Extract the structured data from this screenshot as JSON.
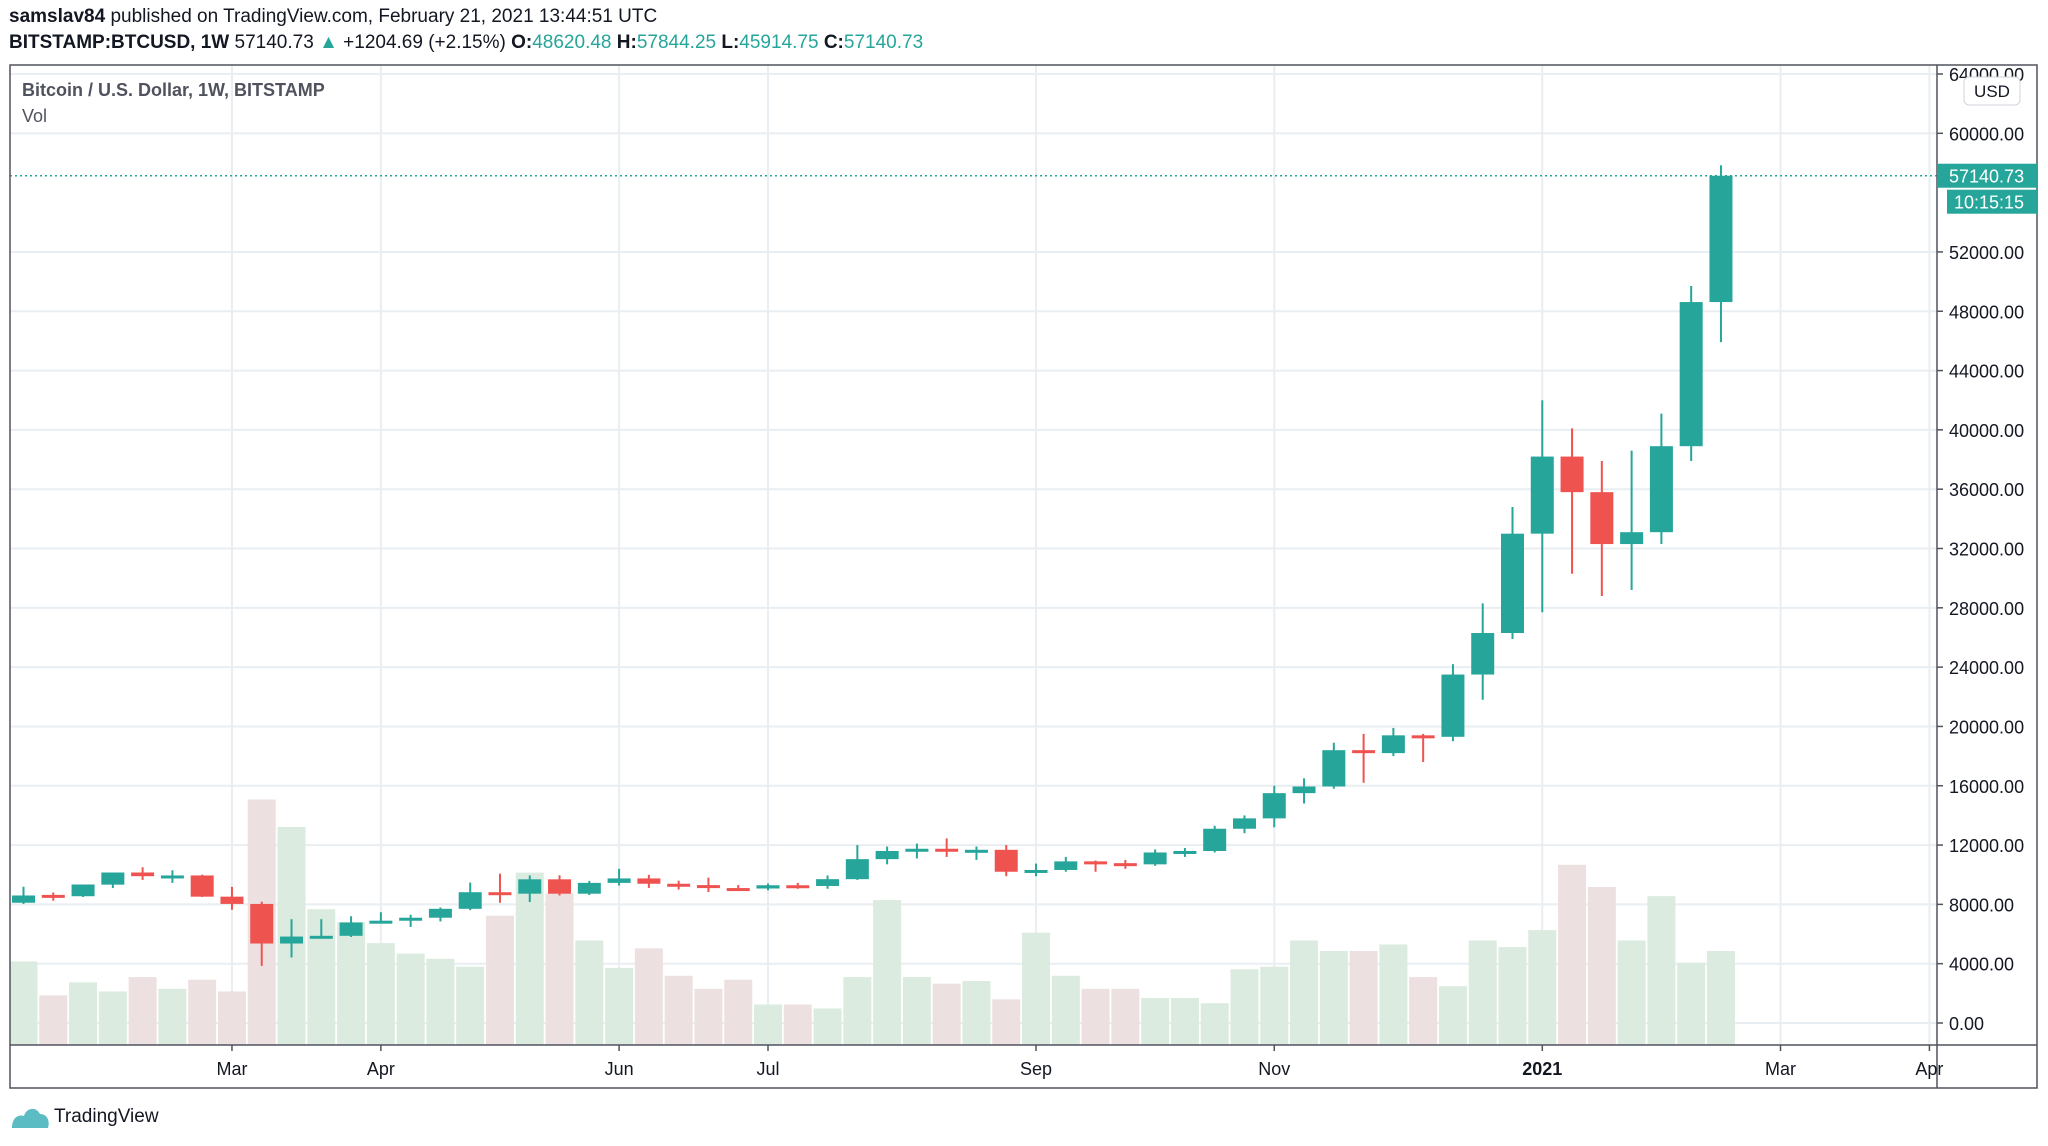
{
  "header": {
    "author": "samslav84",
    "published": "published on TradingView.com, February 21, 2021 13:44:51 UTC",
    "symbol": "BITSTAMP:BTCUSD, 1W",
    "last": "57140.73",
    "change": "+1204.69 (+2.15%)",
    "o_label": "O:",
    "o": "48620.48",
    "h_label": "H:",
    "h": "57844.25",
    "l_label": "L:",
    "l": "45914.75",
    "c_label": "C:",
    "c": "57140.73"
  },
  "legend": {
    "title": "Bitcoin / U.S. Dollar, 1W, BITSTAMP",
    "vol": "Vol"
  },
  "currency": "USD",
  "price_tag": "57140.73",
  "countdown": "10:15:15",
  "footer": {
    "brand": "TradingView"
  },
  "colors": {
    "up": "#26a69a",
    "down": "#ef5350",
    "vol_up": "#dcebdf",
    "vol_down": "#ede0e1",
    "grid": "#e8eef2"
  },
  "chart_data": {
    "type": "candlestick",
    "title": "Bitcoin / U.S. Dollar, 1W, BITSTAMP",
    "ylim": [
      0,
      64000
    ],
    "y_ticks": [
      "0.00",
      "4000.00",
      "8000.00",
      "12000.00",
      "16000.00",
      "20000.00",
      "24000.00",
      "28000.00",
      "32000.00",
      "36000.00",
      "40000.00",
      "44000.00",
      "48000.00",
      "52000.00",
      "60000.00",
      "64000.00"
    ],
    "y_tick_values": [
      0,
      4000,
      8000,
      12000,
      16000,
      20000,
      24000,
      28000,
      32000,
      36000,
      40000,
      44000,
      48000,
      52000,
      60000,
      64000
    ],
    "x_ticks": [
      {
        "label": "Mar",
        "index": 7
      },
      {
        "label": "Apr",
        "index": 12
      },
      {
        "label": "Jun",
        "index": 20
      },
      {
        "label": "Jul",
        "index": 25
      },
      {
        "label": "Sep",
        "index": 34
      },
      {
        "label": "Nov",
        "index": 42
      },
      {
        "label": "2021",
        "index": 51
      },
      {
        "label": "Mar",
        "index": 59
      },
      {
        "label": "Apr",
        "index": 64
      }
    ],
    "ohlc": [
      [
        8110,
        9190,
        8030,
        8600
      ],
      [
        8640,
        8800,
        8250,
        8550
      ],
      [
        8550,
        9340,
        8500,
        9340
      ],
      [
        9330,
        10150,
        9100,
        10150
      ],
      [
        10150,
        10500,
        9650,
        9900
      ],
      [
        9900,
        10300,
        9450,
        9950
      ],
      [
        9950,
        10000,
        8500,
        8520
      ],
      [
        8520,
        9180,
        7630,
        8030
      ],
      [
        8030,
        8180,
        3850,
        5360
      ],
      [
        5360,
        7000,
        4420,
        5830
      ],
      [
        5830,
        7000,
        5850,
        5880
      ],
      [
        5880,
        7200,
        5800,
        6780
      ],
      [
        6780,
        7470,
        6770,
        6900
      ],
      [
        6900,
        7300,
        6480,
        7100
      ],
      [
        7100,
        7790,
        6850,
        7700
      ],
      [
        7700,
        9470,
        7610,
        8820
      ],
      [
        8820,
        10070,
        8110,
        8720
      ],
      [
        8720,
        9950,
        8160,
        9690
      ],
      [
        9690,
        9960,
        8600,
        8720
      ],
      [
        8720,
        9580,
        8630,
        9450
      ],
      [
        9450,
        10400,
        9270,
        9750
      ],
      [
        9750,
        9990,
        9110,
        9390
      ],
      [
        9390,
        9600,
        9000,
        9300
      ],
      [
        9300,
        9800,
        8830,
        9100
      ],
      [
        9100,
        9300,
        8950,
        9070
      ],
      [
        9070,
        9400,
        8950,
        9290
      ],
      [
        9290,
        9450,
        9050,
        9240
      ],
      [
        9240,
        9950,
        9050,
        9700
      ],
      [
        9700,
        12000,
        9650,
        11050
      ],
      [
        11050,
        11900,
        10700,
        11600
      ],
      [
        11600,
        12100,
        11100,
        11750
      ],
      [
        11750,
        12450,
        11200,
        11650
      ],
      [
        11650,
        11900,
        11000,
        11680
      ],
      [
        11680,
        12000,
        9900,
        10200
      ],
      [
        10200,
        10750,
        9900,
        10320
      ],
      [
        10320,
        11200,
        10200,
        10900
      ],
      [
        10900,
        10960,
        10200,
        10780
      ],
      [
        10780,
        11000,
        10400,
        10700
      ],
      [
        10700,
        11700,
        10600,
        11500
      ],
      [
        11500,
        11800,
        11200,
        11600
      ],
      [
        11600,
        13300,
        11500,
        13100
      ],
      [
        13100,
        14000,
        12800,
        13800
      ],
      [
        13800,
        16000,
        13200,
        15500
      ],
      [
        15500,
        16500,
        14800,
        15950
      ],
      [
        15950,
        18900,
        15800,
        18400
      ],
      [
        18400,
        19500,
        16200,
        18200
      ],
      [
        18200,
        19900,
        18000,
        19400
      ],
      [
        19400,
        19500,
        17600,
        19300
      ],
      [
        19300,
        24200,
        19000,
        23500
      ],
      [
        23500,
        28300,
        21800,
        26300
      ],
      [
        26300,
        34800,
        25900,
        33000
      ],
      [
        33000,
        42000,
        27700,
        38200
      ],
      [
        38200,
        40100,
        30300,
        35800
      ],
      [
        35800,
        37900,
        28800,
        32300
      ],
      [
        32300,
        38600,
        29200,
        33100
      ],
      [
        33100,
        41100,
        32300,
        38900
      ],
      [
        38900,
        49700,
        37900,
        48620
      ],
      [
        48620.48,
        57844.25,
        45914.75,
        57140.73
      ]
    ],
    "volume_relative": [
      64,
      38,
      48,
      41,
      52,
      43,
      50,
      41,
      188,
      167,
      104,
      94,
      78,
      70,
      66,
      60,
      99,
      132,
      116,
      80,
      59,
      74,
      53,
      43,
      50,
      31,
      31,
      28,
      52,
      111,
      52,
      47,
      49,
      35,
      86,
      53,
      43,
      43,
      36,
      36,
      32,
      58,
      60,
      80,
      72,
      72,
      77,
      52,
      45,
      80,
      75,
      88,
      138,
      121,
      80,
      114,
      63,
      72
    ]
  }
}
